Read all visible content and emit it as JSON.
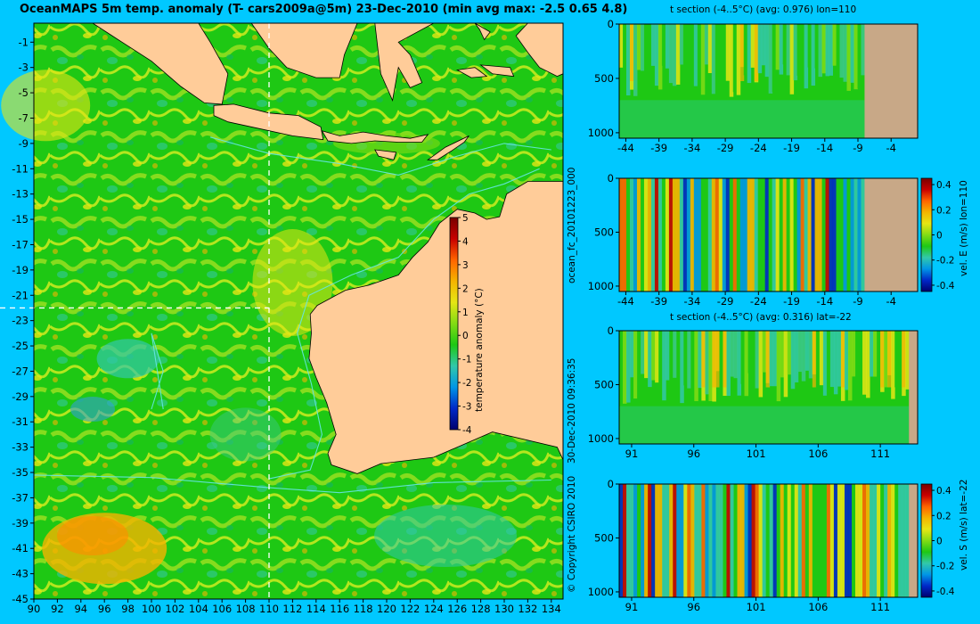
{
  "title": "OceanMAPS 5m temp. anomaly (T- cars2009a@5m) 23-Dec-2010 (min avg max: -2.5 0.65 4.8)",
  "side_labels": {
    "run_id": "ocean_fc_20101223_000",
    "timestamp": "30-Dec-2010 09:36:35",
    "copyright": "© Copyright CSIRO 2010"
  },
  "colors": {
    "background": "#00c8ff",
    "land": "#ffcc99",
    "section_land": "#c8a887",
    "ocean_base": "#1ec814",
    "crosshair": "#ffffff",
    "bathymetry": "#66e6e6",
    "colormap": [
      "#00006e",
      "#0028c8",
      "#0096e6",
      "#32c8aa",
      "#1ec814",
      "#82dc14",
      "#e6e614",
      "#f5b400",
      "#ff6400",
      "#c80000",
      "#780000"
    ]
  },
  "chart_data": [
    {
      "type": "heatmap",
      "name": "map",
      "title": "OceanMAPS 5m temp. anomaly (T- cars2009a@5m) 23-Dec-2010 (min avg max: -2.5 0.65 4.8)",
      "x_ticks": [
        90,
        92,
        94,
        96,
        98,
        100,
        102,
        104,
        106,
        108,
        110,
        112,
        114,
        116,
        118,
        120,
        122,
        124,
        126,
        128,
        130,
        132,
        134
      ],
      "y_ticks": [
        -1,
        -3,
        -5,
        -7,
        -9,
        -11,
        -13,
        -15,
        -17,
        -19,
        -21,
        -23,
        -25,
        -27,
        -29,
        -31,
        -33,
        -35,
        -37,
        -39,
        -41,
        -43,
        -45
      ],
      "xlim": [
        90,
        135
      ],
      "ylim": [
        -45,
        0.5
      ],
      "crosshair": {
        "lon": 110,
        "lat": -22
      },
      "value_stats": {
        "min": -2.5,
        "avg": 0.65,
        "max": 4.8
      },
      "colorbar": {
        "label": "temperature anomaly (°C)",
        "ticks": [
          5,
          4,
          3,
          2,
          1,
          0,
          -1,
          -2,
          -3,
          -4
        ],
        "range": [
          -4,
          5
        ]
      }
    },
    {
      "type": "heatmap",
      "name": "temp-section-lon110",
      "title": "t section (-4..5°C) (avg: 0.976) lon=110",
      "x_ticks": [
        -44,
        -39,
        -34,
        -29,
        -24,
        -19,
        -14,
        -9,
        -4
      ],
      "xlim": [
        -45,
        0
      ],
      "y_ticks": [
        0,
        500,
        1000
      ],
      "ylim": [
        1050,
        0
      ],
      "land_from": -8,
      "avg": 0.976
    },
    {
      "type": "heatmap",
      "name": "velE-section-lon110",
      "title": "",
      "x_ticks": [
        -44,
        -39,
        -34,
        -29,
        -24,
        -19,
        -14,
        -9,
        -4
      ],
      "xlim": [
        -45,
        0
      ],
      "y_ticks": [
        0,
        500,
        1000
      ],
      "ylim": [
        1050,
        0
      ],
      "land_from": -8,
      "colorbar": {
        "label": "vel. E (m/s) lon=110",
        "ticks": [
          0.4,
          0.2,
          0,
          -0.2,
          -0.4
        ],
        "range": [
          -0.45,
          0.45
        ]
      }
    },
    {
      "type": "heatmap",
      "name": "temp-section-lat-22",
      "title": "t section (-4..5°C) (avg: 0.316) lat=-22",
      "x_ticks": [
        91,
        96,
        101,
        106,
        111
      ],
      "xlim": [
        90,
        114
      ],
      "y_ticks": [
        0,
        500,
        1000
      ],
      "ylim": [
        1050,
        0
      ],
      "land_from": 113.3,
      "avg": 0.316
    },
    {
      "type": "heatmap",
      "name": "velS-section-lat-22",
      "title": "",
      "x_ticks": [
        91,
        96,
        101,
        106,
        111
      ],
      "xlim": [
        90,
        114
      ],
      "y_ticks": [
        0,
        500,
        1000
      ],
      "ylim": [
        1050,
        0
      ],
      "land_from": 113.3,
      "colorbar": {
        "label": "vel. S (m/s) lat=-22",
        "ticks": [
          0.4,
          0.2,
          0,
          -0.2,
          -0.4
        ],
        "range": [
          -0.45,
          0.45
        ]
      }
    }
  ]
}
